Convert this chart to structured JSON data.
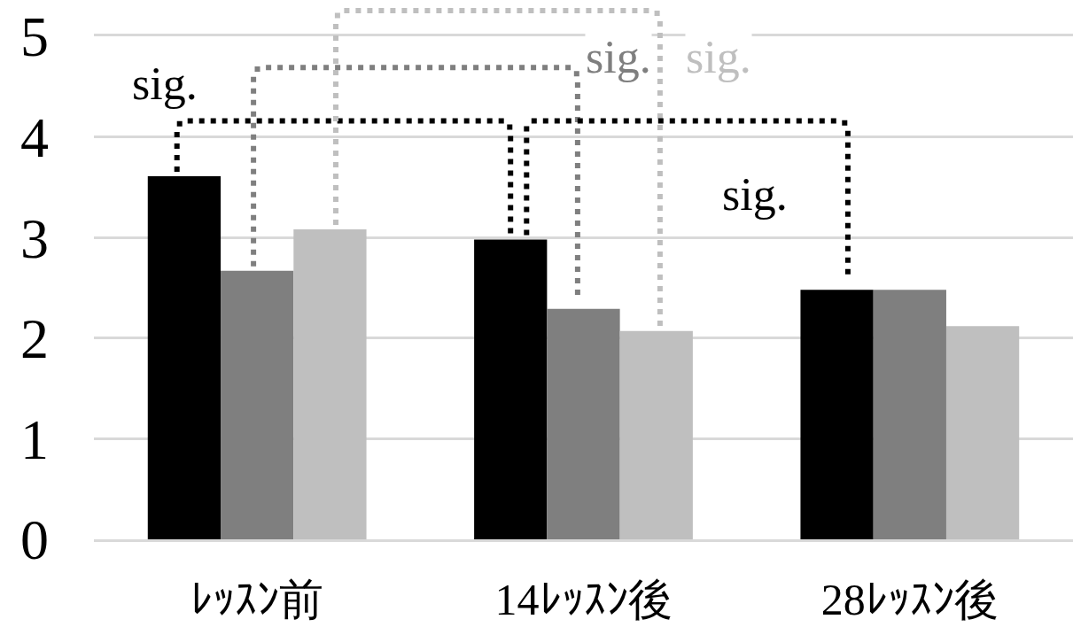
{
  "chart_data": {
    "type": "bar",
    "categories": [
      "ﾚｯｽﾝ前",
      "14ﾚｯｽﾝ後",
      "28ﾚｯｽﾝ後"
    ],
    "series": [
      {
        "color": "#000000",
        "values": [
          3.61,
          2.98,
          2.48
        ]
      },
      {
        "color": "#7f7f7f",
        "values": [
          2.67,
          2.29,
          2.48
        ]
      },
      {
        "color": "#bfbfbf",
        "values": [
          3.08,
          2.07,
          2.12
        ]
      }
    ],
    "ylim": [
      0,
      5
    ],
    "yticks": [
      0,
      1,
      2,
      3,
      4,
      5
    ],
    "grid": "y",
    "annotations": [
      "sig.",
      "sig.",
      "sig.",
      "sig."
    ]
  }
}
